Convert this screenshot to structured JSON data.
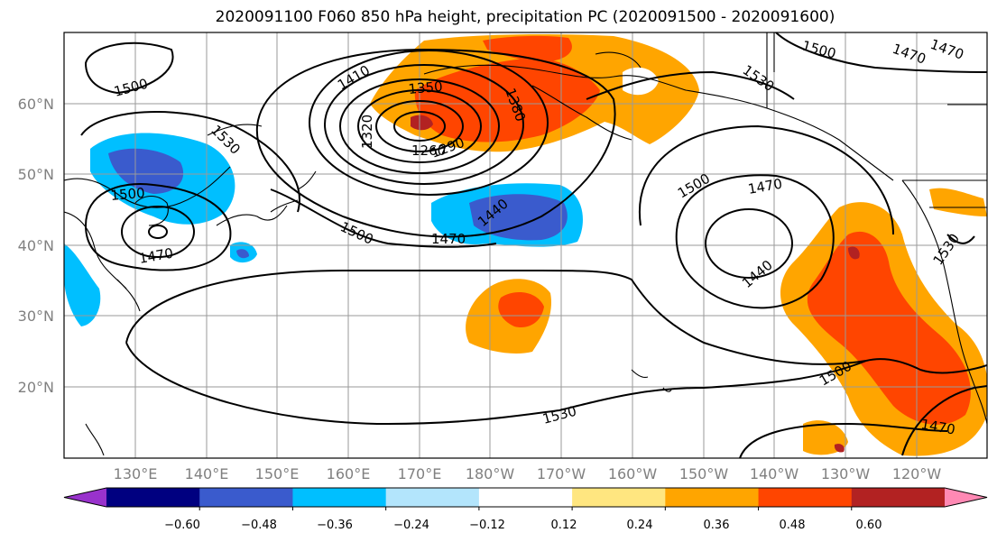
{
  "title": "2020091100 F060 850 hPa height, precipitation PC (2020091500 - 2020091600)",
  "lat_labels": [
    "60°N",
    "50°N",
    "40°N",
    "30°N",
    "20°N"
  ],
  "lon_labels": [
    "130°E",
    "140°E",
    "150°E",
    "160°E",
    "170°E",
    "180°W",
    "170°W",
    "160°W",
    "150°W",
    "140°W",
    "130°W",
    "120°W"
  ],
  "colorbar": {
    "ticks": [
      "−0.60",
      "−0.48",
      "−0.36",
      "−0.24",
      "−0.12",
      "0.12",
      "0.24",
      "0.36",
      "0.48",
      "0.60"
    ],
    "colors": [
      "#9932cc",
      "#000080",
      "#3a5bcd",
      "#00bfff",
      "#b3e5fc",
      "#ffffff",
      "#ffe680",
      "#ffa500",
      "#ff4500",
      "#b22222",
      "#ff89b4"
    ]
  },
  "contour_labels": [
    "1500",
    "1410",
    "1350",
    "1380",
    "1320",
    "1290",
    "1260",
    "1530",
    "1500",
    "1470",
    "1500",
    "1470",
    "1440",
    "1470",
    "1500",
    "1530",
    "1470",
    "1440",
    "1500",
    "1530",
    "1470",
    "1500",
    "1470",
    "1530"
  ]
}
